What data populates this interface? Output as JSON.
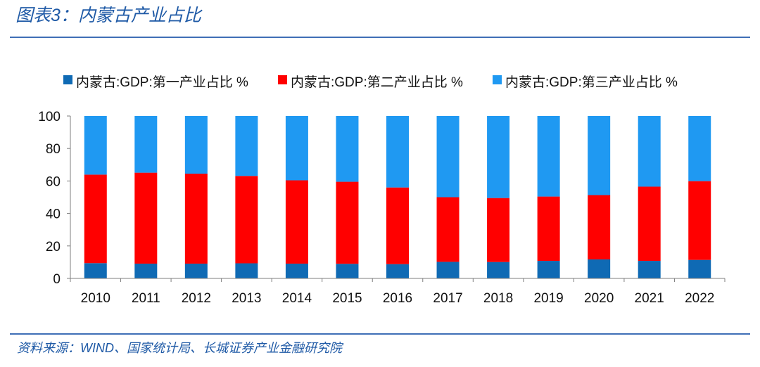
{
  "header": {
    "title": "图表3：内蒙古产业占比"
  },
  "footer": {
    "source": "资料来源：WIND、国家统计局、长城证券产业金融研究院"
  },
  "chart_data": {
    "type": "bar",
    "stacked": true,
    "title": "",
    "xlabel": "",
    "ylabel": "",
    "ylim": [
      0,
      100
    ],
    "yticks": [
      0,
      20,
      40,
      60,
      80,
      100
    ],
    "legend_position": "top",
    "categories": [
      "2010",
      "2011",
      "2012",
      "2013",
      "2014",
      "2015",
      "2016",
      "2017",
      "2018",
      "2019",
      "2020",
      "2021",
      "2022"
    ],
    "series": [
      {
        "name": "内蒙古:GDP:第一产业占比 %",
        "color": "#0f6ab4",
        "values": [
          9.4,
          9.1,
          9.1,
          9.3,
          9.1,
          9.0,
          8.8,
          10.2,
          10.1,
          10.8,
          11.7,
          10.8,
          11.4
        ]
      },
      {
        "name": "内蒙古:GDP:第二产业占比 %",
        "color": "#ff0000",
        "values": [
          54.5,
          56.0,
          55.4,
          53.8,
          51.3,
          50.5,
          47.2,
          39.8,
          39.4,
          39.6,
          39.6,
          45.7,
          48.5
        ]
      },
      {
        "name": "内蒙古:GDP:第三产业占比 %",
        "color": "#1f99f2",
        "values": [
          36.1,
          34.9,
          35.5,
          36.9,
          39.6,
          40.5,
          44.0,
          50.0,
          50.5,
          49.6,
          48.7,
          43.5,
          40.1
        ]
      }
    ]
  }
}
